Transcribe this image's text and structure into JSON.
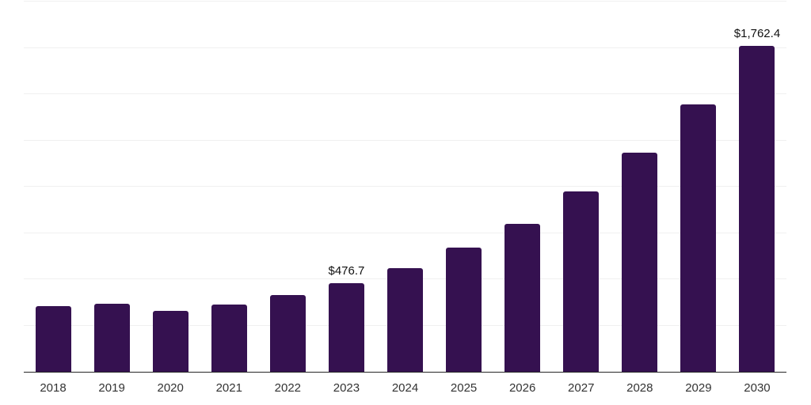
{
  "chart_data": {
    "type": "bar",
    "title": "",
    "xlabel": "",
    "ylabel": "",
    "categories": [
      "2018",
      "2019",
      "2020",
      "2021",
      "2022",
      "2023",
      "2024",
      "2025",
      "2026",
      "2027",
      "2028",
      "2029",
      "2030"
    ],
    "values": [
      356,
      368,
      327,
      362,
      413,
      476.7,
      558,
      671,
      800,
      975,
      1185,
      1445,
      1762.4
    ],
    "data_labels": [
      null,
      null,
      null,
      null,
      null,
      "$476.7",
      null,
      null,
      null,
      null,
      null,
      null,
      "$1,762.4"
    ],
    "ylim": [
      0,
      2000
    ],
    "gridline_values": [
      250,
      500,
      750,
      1000,
      1250,
      1500,
      1750,
      2000
    ],
    "grid": "horizontal",
    "legend": "none",
    "y_axis_tick_labels_visible": false
  },
  "styles": {
    "bar_color": "#351150",
    "axis_line_color": "#262626",
    "gridline_color": "#f0f0f0",
    "tick_label_color": "#333333",
    "data_label_color": "#111111",
    "background_color": "#ffffff"
  }
}
